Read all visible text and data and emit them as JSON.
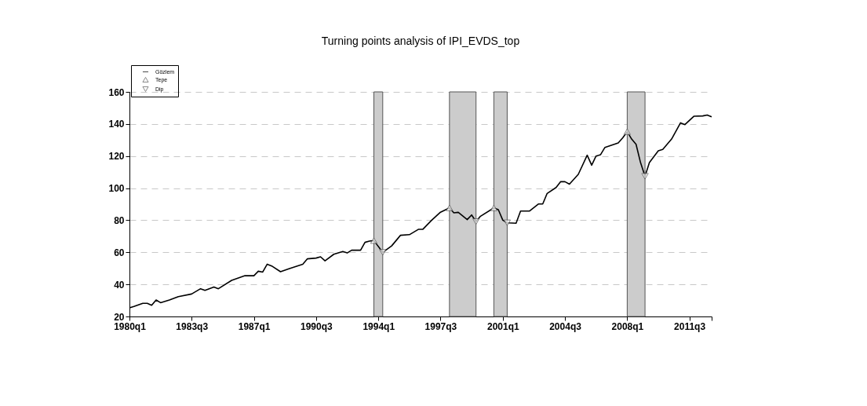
{
  "chart_data": {
    "type": "line",
    "title": "Turning points analysis of IPI_EVDS_top",
    "xlim": [
      "1980-01",
      "2012-10"
    ],
    "xticks": [
      {
        "value": "1980-01",
        "label": "1980q1"
      },
      {
        "value": "1983-07",
        "label": "1983q3"
      },
      {
        "value": "1987-01",
        "label": "1987q1"
      },
      {
        "value": "1990-07",
        "label": "1990q3"
      },
      {
        "value": "1994-01",
        "label": "1994q1"
      },
      {
        "value": "1997-07",
        "label": "1997q3"
      },
      {
        "value": "2001-01",
        "label": "2001q1"
      },
      {
        "value": "2004-07",
        "label": "2004q3"
      },
      {
        "value": "2008-01",
        "label": "2008q1"
      },
      {
        "value": "2011-07",
        "label": "2011q3"
      },
      {
        "value": "2012-10",
        "label": null
      }
    ],
    "ylim": [
      20,
      160
    ],
    "yticks": [
      20,
      40,
      60,
      80,
      100,
      120,
      140,
      160
    ],
    "grid": "y",
    "legend": "top left",
    "bands": [
      {
        "axis": "x",
        "from": "1993-10",
        "to": "1994-04",
        "color": "#cccccc"
      },
      {
        "axis": "x",
        "from": "1998-01",
        "to": "1999-07",
        "color": "#cccccc"
      },
      {
        "axis": "x",
        "from": "2000-07",
        "to": "2001-04",
        "color": "#cccccc"
      },
      {
        "axis": "x",
        "from": "2008-01",
        "to": "2009-01",
        "color": "#cccccc"
      }
    ],
    "series": [
      {
        "name": "Gözlem",
        "color": "#000000",
        "x": [
          "1980-01",
          "1980-04",
          "1980-10",
          "1981-01",
          "1981-04",
          "1981-07",
          "1981-10",
          "1982-04",
          "1982-10",
          "1983-07",
          "1984-01",
          "1984-04",
          "1984-10",
          "1985-01",
          "1985-10",
          "1986-07",
          "1987-01",
          "1987-04",
          "1987-07",
          "1987-10",
          "1988-01",
          "1988-07",
          "1989-01",
          "1989-10",
          "1990-01",
          "1990-07",
          "1990-10",
          "1991-01",
          "1991-07",
          "1992-01",
          "1992-04",
          "1992-07",
          "1993-01",
          "1993-04",
          "1993-07",
          "1993-10",
          "1994-04",
          "1994-10",
          "1995-04",
          "1995-10",
          "1996-04",
          "1996-07",
          "1997-01",
          "1997-07",
          "1998-01",
          "1998-04",
          "1998-07",
          "1999-01",
          "1999-04",
          "1999-07",
          "1999-10",
          "2000-07",
          "2000-10",
          "2001-01",
          "2001-04",
          "2001-10",
          "2002-01",
          "2002-07",
          "2003-01",
          "2003-04",
          "2003-07",
          "2004-01",
          "2004-04",
          "2004-07",
          "2004-10",
          "2005-04",
          "2005-10",
          "2006-01",
          "2006-04",
          "2006-07",
          "2006-10",
          "2007-07",
          "2007-10",
          "2008-01",
          "2008-04",
          "2008-07",
          "2008-10",
          "2009-01",
          "2009-04",
          "2009-10",
          "2010-01",
          "2010-07",
          "2011-01",
          "2011-04",
          "2011-10",
          "2012-04",
          "2012-07",
          "2012-10"
        ],
        "values": [
          25.4,
          26.2,
          28.2,
          28.2,
          27,
          30.3,
          28.6,
          30.3,
          32.4,
          34,
          37.3,
          36.3,
          38.4,
          37.3,
          42.5,
          45.4,
          45.4,
          48.2,
          47.7,
          52.6,
          51.5,
          47.9,
          49.9,
          52.6,
          55.9,
          56.4,
          57.2,
          54.7,
          58.8,
          60.5,
          59.6,
          61.3,
          61.3,
          66.2,
          67,
          67.3,
          60,
          64,
          70.6,
          71,
          74.3,
          74.3,
          80,
          85,
          87.7,
          84.6,
          84.9,
          80.4,
          83.3,
          79.2,
          82.5,
          87.7,
          86.6,
          80,
          78.4,
          78.1,
          85.7,
          85.7,
          90.1,
          90.1,
          96.7,
          100.4,
          104,
          104,
          102.5,
          108.6,
          120.5,
          114.3,
          120,
          120.8,
          125.4,
          128.2,
          131.4,
          135.2,
          130.6,
          127.3,
          115.9,
          107.4,
          115.9,
          123.3,
          124.1,
          130.6,
          140.7,
          139.6,
          144.8,
          145,
          145.6,
          144.5
        ]
      },
      {
        "name": "Tepe",
        "type": "scatter",
        "marker": "triangle",
        "color": "#555555",
        "x": [
          "1993-10",
          "1998-01",
          "2000-07",
          "2008-01"
        ],
        "values": [
          67.3,
          87.7,
          87.7,
          135.2
        ]
      },
      {
        "name": "Dip",
        "type": "scatter",
        "marker": "triangle-down",
        "color": "#555555",
        "x": [
          "1994-04",
          "1999-07",
          "2001-04",
          "2009-01"
        ],
        "values": [
          60,
          79.2,
          78.4,
          107.4
        ]
      }
    ]
  }
}
